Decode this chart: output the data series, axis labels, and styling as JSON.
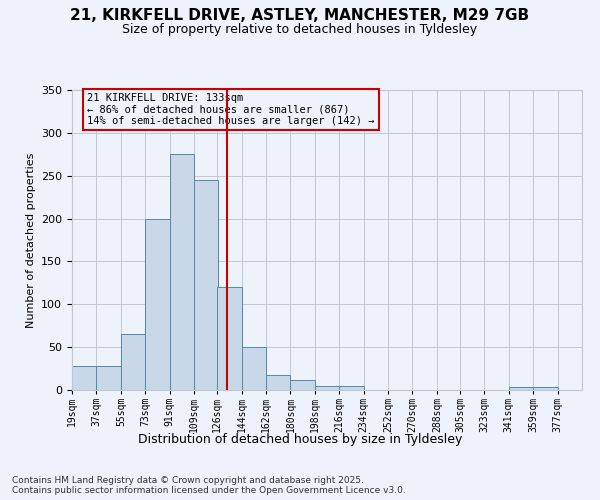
{
  "title_line1": "21, KIRKFELL DRIVE, ASTLEY, MANCHESTER, M29 7GB",
  "title_line2": "Size of property relative to detached houses in Tyldesley",
  "xlabel": "Distribution of detached houses by size in Tyldesley",
  "ylabel": "Number of detached properties",
  "annotation_title": "21 KIRKFELL DRIVE: 133sqm",
  "annotation_line2": "← 86% of detached houses are smaller (867)",
  "annotation_line3": "14% of semi-detached houses are larger (142) →",
  "property_size": 133,
  "bin_edges": [
    19,
    37,
    55,
    73,
    91,
    109,
    126,
    144,
    162,
    180,
    198,
    216,
    234,
    252,
    270,
    288,
    305,
    323,
    341,
    359,
    377
  ],
  "bin_labels": [
    "19sqm",
    "37sqm",
    "55sqm",
    "73sqm",
    "91sqm",
    "109sqm",
    "126sqm",
    "144sqm",
    "162sqm",
    "180sqm",
    "198sqm",
    "216sqm",
    "234sqm",
    "252sqm",
    "270sqm",
    "288sqm",
    "305sqm",
    "323sqm",
    "341sqm",
    "359sqm",
    "377sqm"
  ],
  "bar_heights": [
    28,
    28,
    65,
    200,
    275,
    245,
    120,
    50,
    17,
    12,
    5,
    5,
    0,
    0,
    0,
    0,
    0,
    0,
    3,
    4,
    0
  ],
  "bar_color": "#c8d8e8",
  "bar_edge_color": "#5588aa",
  "vline_x": 133,
  "vline_color": "#cc0000",
  "background_color": "#eef2fa",
  "grid_color": "#c0c8d8",
  "footer": "Contains HM Land Registry data © Crown copyright and database right 2025.\nContains public sector information licensed under the Open Government Licence v3.0.",
  "ylim": [
    0,
    350
  ],
  "yticks": [
    0,
    50,
    100,
    150,
    200,
    250,
    300,
    350
  ]
}
